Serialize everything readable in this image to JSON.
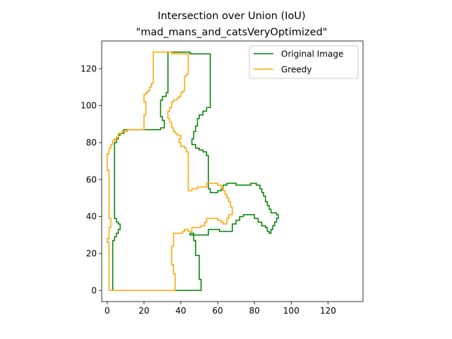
{
  "chart_data": {
    "type": "line",
    "title": "Intersection over Union (IoU)",
    "subtitle": "\"mad_mans_and_catsVeryOptimized\"",
    "xlabel": "",
    "ylabel": "",
    "xlim": [
      -3,
      139
    ],
    "ylim": [
      -6,
      135
    ],
    "xticks": [
      0,
      20,
      40,
      60,
      80,
      100,
      120
    ],
    "yticks": [
      0,
      20,
      40,
      60,
      80,
      100,
      120
    ],
    "grid": false,
    "legend_position": "top-right",
    "series": [
      {
        "name": "Original Image",
        "color": "#008000",
        "points": [
          [
            37,
            0
          ],
          [
            51,
            0
          ],
          [
            51,
            6
          ],
          [
            50,
            6
          ],
          [
            50,
            19
          ],
          [
            48,
            19
          ],
          [
            48,
            27
          ],
          [
            47,
            27
          ],
          [
            47,
            31
          ],
          [
            45,
            31
          ],
          [
            45,
            30
          ],
          [
            55,
            30
          ],
          [
            55,
            33
          ],
          [
            61,
            33
          ],
          [
            61,
            32
          ],
          [
            68,
            32
          ],
          [
            68,
            36
          ],
          [
            70,
            36
          ],
          [
            70,
            38
          ],
          [
            72,
            38
          ],
          [
            72,
            40
          ],
          [
            74,
            40
          ],
          [
            74,
            41
          ],
          [
            80,
            41
          ],
          [
            80,
            39
          ],
          [
            82,
            39
          ],
          [
            82,
            37
          ],
          [
            84,
            37
          ],
          [
            84,
            35
          ],
          [
            86,
            35
          ],
          [
            86,
            34
          ],
          [
            87,
            34
          ],
          [
            87,
            32
          ],
          [
            88,
            32
          ],
          [
            88,
            31
          ],
          [
            89,
            31
          ],
          [
            89,
            33
          ],
          [
            90,
            33
          ],
          [
            90,
            35
          ],
          [
            91,
            35
          ],
          [
            91,
            37
          ],
          [
            92,
            37
          ],
          [
            92,
            39
          ],
          [
            93,
            39
          ],
          [
            93,
            41
          ],
          [
            92,
            41
          ],
          [
            92,
            42
          ],
          [
            89,
            42
          ],
          [
            89,
            44
          ],
          [
            88,
            44
          ],
          [
            88,
            46
          ],
          [
            87,
            46
          ],
          [
            87,
            48
          ],
          [
            86,
            48
          ],
          [
            86,
            51
          ],
          [
            85,
            51
          ],
          [
            85,
            53
          ],
          [
            84,
            53
          ],
          [
            84,
            55
          ],
          [
            83,
            55
          ],
          [
            83,
            57
          ],
          [
            81,
            57
          ],
          [
            81,
            58
          ],
          [
            78,
            58
          ],
          [
            78,
            57
          ],
          [
            70,
            57
          ],
          [
            70,
            58
          ],
          [
            65,
            58
          ],
          [
            65,
            57
          ],
          [
            63,
            57
          ],
          [
            63,
            55
          ],
          [
            62,
            55
          ],
          [
            62,
            54
          ],
          [
            60,
            54
          ],
          [
            60,
            53
          ],
          [
            56,
            53
          ],
          [
            56,
            55
          ],
          [
            55,
            55
          ],
          [
            55,
            73
          ],
          [
            54,
            73
          ],
          [
            54,
            75
          ],
          [
            52,
            75
          ],
          [
            52,
            76
          ],
          [
            50,
            76
          ],
          [
            50,
            77
          ],
          [
            48,
            77
          ],
          [
            48,
            79
          ],
          [
            46,
            79
          ],
          [
            46,
            82
          ],
          [
            47,
            82
          ],
          [
            47,
            86
          ],
          [
            48,
            86
          ],
          [
            48,
            89
          ],
          [
            49,
            89
          ],
          [
            49,
            93
          ],
          [
            50,
            93
          ],
          [
            50,
            95
          ],
          [
            52,
            95
          ],
          [
            52,
            97
          ],
          [
            54,
            97
          ],
          [
            54,
            99
          ],
          [
            56,
            99
          ],
          [
            56,
            128
          ],
          [
            45,
            128
          ],
          [
            45,
            129
          ],
          [
            33,
            129
          ],
          [
            33,
            107
          ],
          [
            32,
            107
          ],
          [
            32,
            105
          ],
          [
            30,
            105
          ],
          [
            30,
            103
          ],
          [
            29,
            103
          ],
          [
            29,
            94
          ],
          [
            30,
            94
          ],
          [
            30,
            92
          ],
          [
            31,
            92
          ],
          [
            31,
            88
          ],
          [
            29,
            88
          ],
          [
            29,
            87
          ],
          [
            9,
            87
          ],
          [
            9,
            85
          ],
          [
            7,
            85
          ],
          [
            7,
            84
          ],
          [
            6,
            84
          ],
          [
            6,
            82
          ],
          [
            5,
            82
          ],
          [
            5,
            80
          ],
          [
            4,
            80
          ],
          [
            4,
            39
          ],
          [
            5,
            39
          ],
          [
            5,
            37
          ],
          [
            6,
            37
          ],
          [
            6,
            36
          ],
          [
            7,
            36
          ],
          [
            7,
            33
          ],
          [
            6,
            33
          ],
          [
            6,
            31
          ],
          [
            5,
            31
          ],
          [
            5,
            29
          ],
          [
            4,
            29
          ],
          [
            4,
            27
          ],
          [
            3,
            27
          ],
          [
            3,
            0
          ],
          [
            37,
            0
          ]
        ]
      },
      {
        "name": "Greedy",
        "color": "#FFA500",
        "points": [
          [
            1,
            0
          ],
          [
            37,
            0
          ],
          [
            37,
            9
          ],
          [
            36,
            9
          ],
          [
            36,
            14
          ],
          [
            35,
            14
          ],
          [
            35,
            24
          ],
          [
            36,
            24
          ],
          [
            36,
            31
          ],
          [
            41,
            31
          ],
          [
            41,
            32
          ],
          [
            42,
            32
          ],
          [
            42,
            33
          ],
          [
            44,
            33
          ],
          [
            44,
            32
          ],
          [
            46,
            32
          ],
          [
            46,
            34
          ],
          [
            51,
            34
          ],
          [
            51,
            35
          ],
          [
            53,
            35
          ],
          [
            53,
            37
          ],
          [
            54,
            37
          ],
          [
            54,
            39
          ],
          [
            60,
            39
          ],
          [
            60,
            38
          ],
          [
            62,
            38
          ],
          [
            62,
            37
          ],
          [
            63,
            37
          ],
          [
            63,
            36
          ],
          [
            65,
            36
          ],
          [
            65,
            39
          ],
          [
            66,
            39
          ],
          [
            66,
            41
          ],
          [
            68,
            41
          ],
          [
            68,
            45
          ],
          [
            67,
            45
          ],
          [
            67,
            48
          ],
          [
            66,
            48
          ],
          [
            66,
            50
          ],
          [
            65,
            50
          ],
          [
            65,
            52
          ],
          [
            64,
            52
          ],
          [
            64,
            54
          ],
          [
            63,
            54
          ],
          [
            63,
            56
          ],
          [
            62,
            56
          ],
          [
            62,
            57
          ],
          [
            60,
            57
          ],
          [
            60,
            58
          ],
          [
            54,
            58
          ],
          [
            54,
            56
          ],
          [
            49,
            56
          ],
          [
            49,
            55
          ],
          [
            46,
            55
          ],
          [
            46,
            54
          ],
          [
            44,
            54
          ],
          [
            44,
            75
          ],
          [
            43,
            75
          ],
          [
            43,
            77
          ],
          [
            42,
            77
          ],
          [
            42,
            78
          ],
          [
            40,
            78
          ],
          [
            40,
            80
          ],
          [
            39,
            80
          ],
          [
            39,
            82
          ],
          [
            40,
            82
          ],
          [
            40,
            84
          ],
          [
            38,
            84
          ],
          [
            38,
            85
          ],
          [
            37,
            85
          ],
          [
            37,
            86
          ],
          [
            36,
            86
          ],
          [
            36,
            88
          ],
          [
            35,
            88
          ],
          [
            35,
            91
          ],
          [
            34,
            91
          ],
          [
            34,
            93
          ],
          [
            33,
            93
          ],
          [
            33,
            97
          ],
          [
            34,
            97
          ],
          [
            34,
            99
          ],
          [
            35,
            99
          ],
          [
            35,
            102
          ],
          [
            36,
            102
          ],
          [
            36,
            103
          ],
          [
            38,
            103
          ],
          [
            38,
            104
          ],
          [
            39,
            104
          ],
          [
            39,
            105
          ],
          [
            40,
            105
          ],
          [
            40,
            107
          ],
          [
            41,
            107
          ],
          [
            41,
            108
          ],
          [
            42,
            108
          ],
          [
            42,
            116
          ],
          [
            43,
            116
          ],
          [
            43,
            117
          ],
          [
            44,
            117
          ],
          [
            44,
            128
          ],
          [
            35,
            128
          ],
          [
            35,
            129
          ],
          [
            25,
            129
          ],
          [
            25,
            112
          ],
          [
            24,
            112
          ],
          [
            24,
            110
          ],
          [
            23,
            110
          ],
          [
            23,
            108
          ],
          [
            22,
            108
          ],
          [
            22,
            107
          ],
          [
            21,
            107
          ],
          [
            21,
            106
          ],
          [
            20,
            106
          ],
          [
            20,
            102
          ],
          [
            21,
            102
          ],
          [
            21,
            95
          ],
          [
            20,
            95
          ],
          [
            20,
            87
          ],
          [
            11,
            87
          ],
          [
            11,
            86
          ],
          [
            8,
            86
          ],
          [
            8,
            85
          ],
          [
            6,
            85
          ],
          [
            6,
            83
          ],
          [
            5,
            83
          ],
          [
            5,
            82
          ],
          [
            4,
            82
          ],
          [
            4,
            81
          ],
          [
            3,
            81
          ],
          [
            3,
            79
          ],
          [
            2,
            79
          ],
          [
            2,
            77
          ],
          [
            1,
            77
          ],
          [
            1,
            74
          ],
          [
            0,
            74
          ],
          [
            0,
            65
          ],
          [
            1,
            65
          ],
          [
            1,
            39
          ],
          [
            2,
            39
          ],
          [
            2,
            34
          ],
          [
            1,
            34
          ],
          [
            1,
            28
          ],
          [
            0,
            28
          ],
          [
            0,
            26
          ],
          [
            1,
            26
          ],
          [
            1,
            0
          ]
        ]
      }
    ]
  }
}
